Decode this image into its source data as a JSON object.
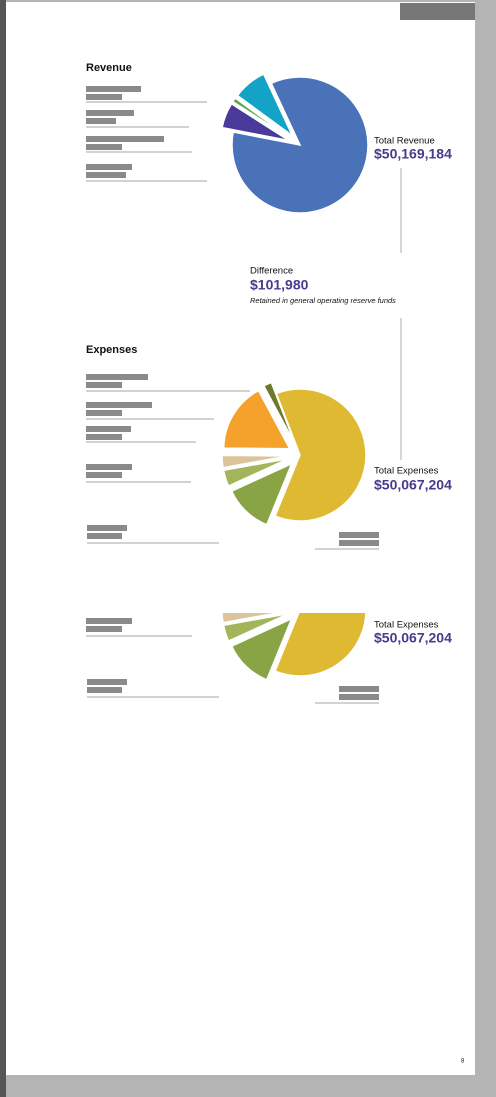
{
  "revenue": {
    "title": "Revenue",
    "total_label": "Total Revenue",
    "total_value": "$50,169,184",
    "slices": [
      {
        "color": "#4a72b8",
        "value": 85
      },
      {
        "color": "#4a3a99",
        "value": 6
      },
      {
        "color": "#5aa84a",
        "value": 1
      },
      {
        "color": "#12a3c6",
        "value": 8
      }
    ]
  },
  "difference": {
    "label": "Difference",
    "value": "$101,980",
    "note": "Retained in general operating reserve funds"
  },
  "expenses": {
    "title": "Expenses",
    "total_label": "Total Expenses",
    "total_value": "$50,067,204",
    "slices": [
      {
        "color": "#dfb932",
        "value": 62
      },
      {
        "color": "#88a444",
        "value": 12
      },
      {
        "color": "#a3b55a",
        "value": 4
      },
      {
        "color": "#dcc49a",
        "value": 3
      },
      {
        "color": "#f4a22c",
        "value": 17
      },
      {
        "color": "#6d7a2a",
        "value": 2
      }
    ]
  },
  "expenses_repeat": {
    "total_label": "Total Expenses",
    "total_value": "$50,067,204"
  },
  "page_number": "8"
}
